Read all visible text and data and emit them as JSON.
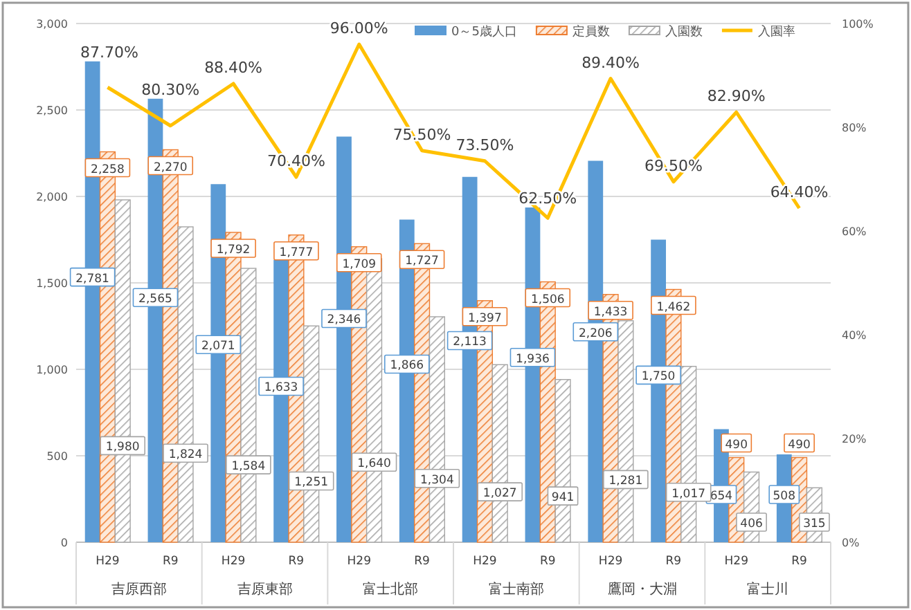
{
  "chart_data": {
    "type": "bar",
    "categories": [
      "H29",
      "R9",
      "H29",
      "R9",
      "H29",
      "R9",
      "H29",
      "R9",
      "H29",
      "R9",
      "H29",
      "R9"
    ],
    "annotations": [
      "吉原西部",
      "吉原東部",
      "富士北部",
      "富士南部",
      "鷹岡・大淵",
      "富士川"
    ],
    "series": [
      {
        "name": "0～5歳人口",
        "color": "#5b9bd5",
        "values": [
          2781,
          2565,
          2071,
          1633,
          2346,
          1866,
          2113,
          1936,
          2206,
          1750,
          654,
          508
        ],
        "value_labels": [
          "2,781",
          "2,565",
          "2,071",
          "1,633",
          "2,346",
          "1,866",
          "2,113",
          "1,936",
          "2,206",
          "1,750",
          "654",
          "508"
        ]
      },
      {
        "name": "定員数",
        "color": "#ed7d31",
        "values": [
          2258,
          2270,
          1792,
          1777,
          1709,
          1727,
          1397,
          1506,
          1433,
          1462,
          490,
          490
        ],
        "value_labels": [
          "2,258",
          "2,270",
          "1,792",
          "1,777",
          "1,709",
          "1,727",
          "1,397",
          "1,506",
          "1,433",
          "1,462",
          "490",
          "490"
        ]
      },
      {
        "name": "入園数",
        "color": "#a5a5a5",
        "values": [
          1980,
          1824,
          1584,
          1251,
          1640,
          1304,
          1027,
          941,
          1281,
          1017,
          406,
          315
        ],
        "value_labels": [
          "1,980",
          "1,824",
          "1,584",
          "1,251",
          "1,640",
          "1,304",
          "1,027",
          "941",
          "1,281",
          "1,017",
          "406",
          "315"
        ]
      },
      {
        "name": "入園率",
        "type": "line",
        "axis": "y2",
        "color": "#ffc000",
        "values": [
          87.7,
          80.3,
          88.4,
          70.4,
          96.0,
          75.5,
          73.5,
          62.5,
          89.4,
          69.5,
          82.9,
          64.4
        ],
        "value_labels": [
          "87.70%",
          "80.30%",
          "88.40%",
          "70.40%",
          "96.00%",
          "75.50%",
          "73.50%",
          "62.50%",
          "89.40%",
          "69.50%",
          "82.90%",
          "64.40%"
        ]
      }
    ],
    "ylim": [
      0,
      3000
    ],
    "yticks": [
      0,
      {
        "value": 500,
        "label": "500"
      },
      {
        "value": 1000,
        "label": "1,000"
      },
      {
        "value": 1500,
        "label": "1,500"
      },
      {
        "value": 2000,
        "label": "2,000"
      },
      {
        "value": 2500,
        "label": "2,500"
      },
      {
        "value": 3000,
        "label": "3,000"
      }
    ],
    "y2lim": [
      0,
      100
    ],
    "y2ticks": [
      {
        "value": 0,
        "label": "0%"
      },
      {
        "value": 20,
        "label": "20%"
      },
      {
        "value": 40,
        "label": "40%"
      },
      {
        "value": 60,
        "label": "60%"
      },
      {
        "value": 80,
        "label": "80%"
      },
      {
        "value": 100,
        "label": "100%"
      }
    ],
    "grid": "y",
    "legend": "top right"
  }
}
